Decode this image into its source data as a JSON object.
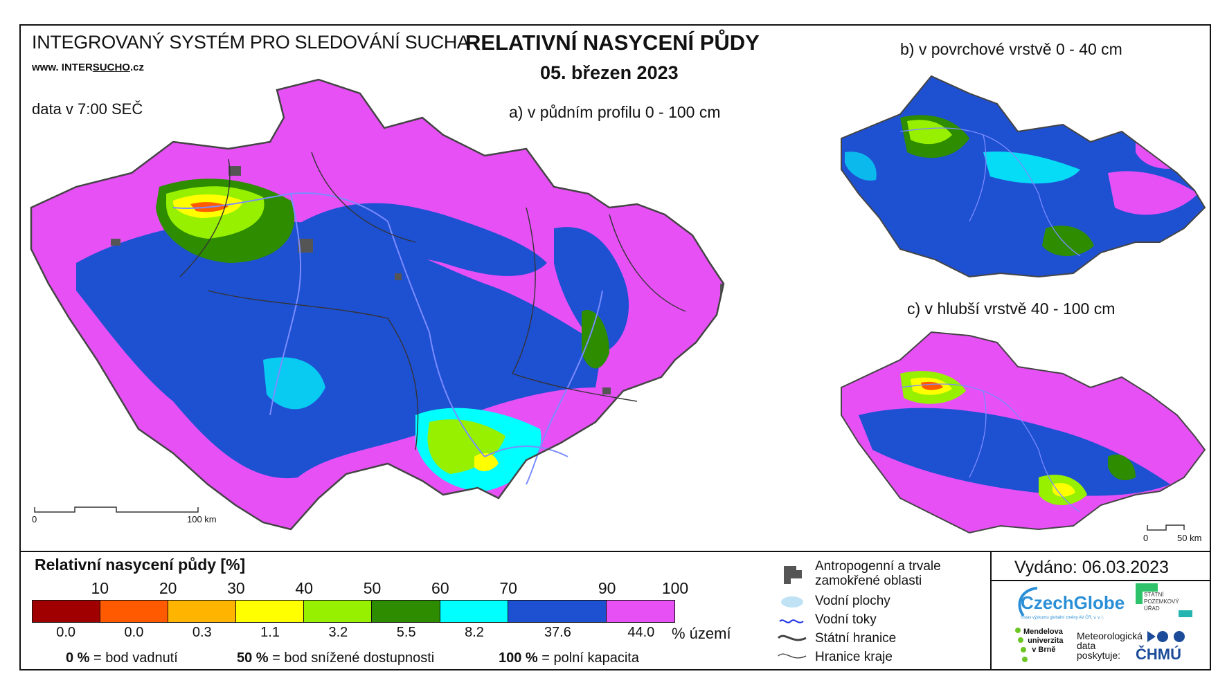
{
  "header": {
    "system_title": "INTEGROVANÝ SYSTÉM PRO SLEDOVÁNÍ SUCHA",
    "website_prefix": "www. INTER",
    "website_underlined": "SUCHO",
    "website_suffix": ".cz",
    "data_time": "data v 7:00 SEČ",
    "main_title": "RELATIVNÍ NASYCENÍ PŮDY",
    "date": "05. březen 2023"
  },
  "maps": {
    "a_title": "a) v půdním profilu 0 - 100 cm",
    "b_title": "b) v povrchové vrstvě 0 - 40 cm",
    "c_title": "c) v hlubší vrstvě 40 - 100 cm",
    "scale_a": {
      "start": "0",
      "end": "100 km"
    },
    "scale_c": {
      "start": "0",
      "end": "50 km"
    }
  },
  "legend": {
    "title": "Relativní nasycení půdy [%]",
    "ticks": [
      "10",
      "20",
      "30",
      "40",
      "50",
      "60",
      "70",
      "90",
      "100"
    ],
    "classes": [
      {
        "color": "#a00000",
        "pct": "0.0"
      },
      {
        "color": "#ff5a00",
        "pct": "0.0"
      },
      {
        "color": "#ffb400",
        "pct": "0.3"
      },
      {
        "color": "#ffff00",
        "pct": "1.1"
      },
      {
        "color": "#96f000",
        "pct": "3.2"
      },
      {
        "color": "#2d8c00",
        "pct": "5.5"
      },
      {
        "color": "#00ffff",
        "pct": "8.2"
      },
      {
        "color": "#1e50d2",
        "pct": "37.6"
      },
      {
        "color": "#e650f5",
        "pct": "44.0"
      }
    ],
    "pct_unit": "% území",
    "explain": [
      {
        "value": "0 %",
        "text": "= bod vadnutí"
      },
      {
        "value": "50 %",
        "text": "= bod snížené dostupnosti"
      },
      {
        "value": "100 %",
        "text": "= polní kapacita"
      }
    ]
  },
  "map_legend": {
    "anthropogenic": "Antropogenní a trvale zamokřené oblasti",
    "anthropogenic_l1": "Antropogenní a trvale",
    "anthropogenic_l2": "zamokřené oblasti",
    "water_bodies": "Vodní plochy",
    "rivers": "Vodní toky",
    "state_border": "Státní hranice",
    "region_border": "Hranice kraje"
  },
  "footer": {
    "issued": "Vydáno: 06.03.2023",
    "czechglobe": "CzechGlobe",
    "czechglobe_sub": "Ústav výzkumu globální změny AV ČR, v. v. i.",
    "spu_l1": "STÁTNÍ",
    "spu_l2": "POZEMKOVÝ",
    "spu_l3": "ÚŘAD",
    "mendel_l1": "Mendelova",
    "mendel_l2": "univerzita",
    "mendel_l3": "v Brně",
    "meteo_l1": "Meteorologická",
    "meteo_l2": "data",
    "meteo_l3": "poskytuje:",
    "chmu": "ČHMÚ"
  },
  "colors": {
    "magenta": "#e650f5",
    "blue": "#1e50d2",
    "cyan": "#00ffff",
    "green": "#2d8c00",
    "lightgreen": "#96f000",
    "yellow": "#ffff00",
    "river": "#7b8cff",
    "gray": "#555555"
  }
}
